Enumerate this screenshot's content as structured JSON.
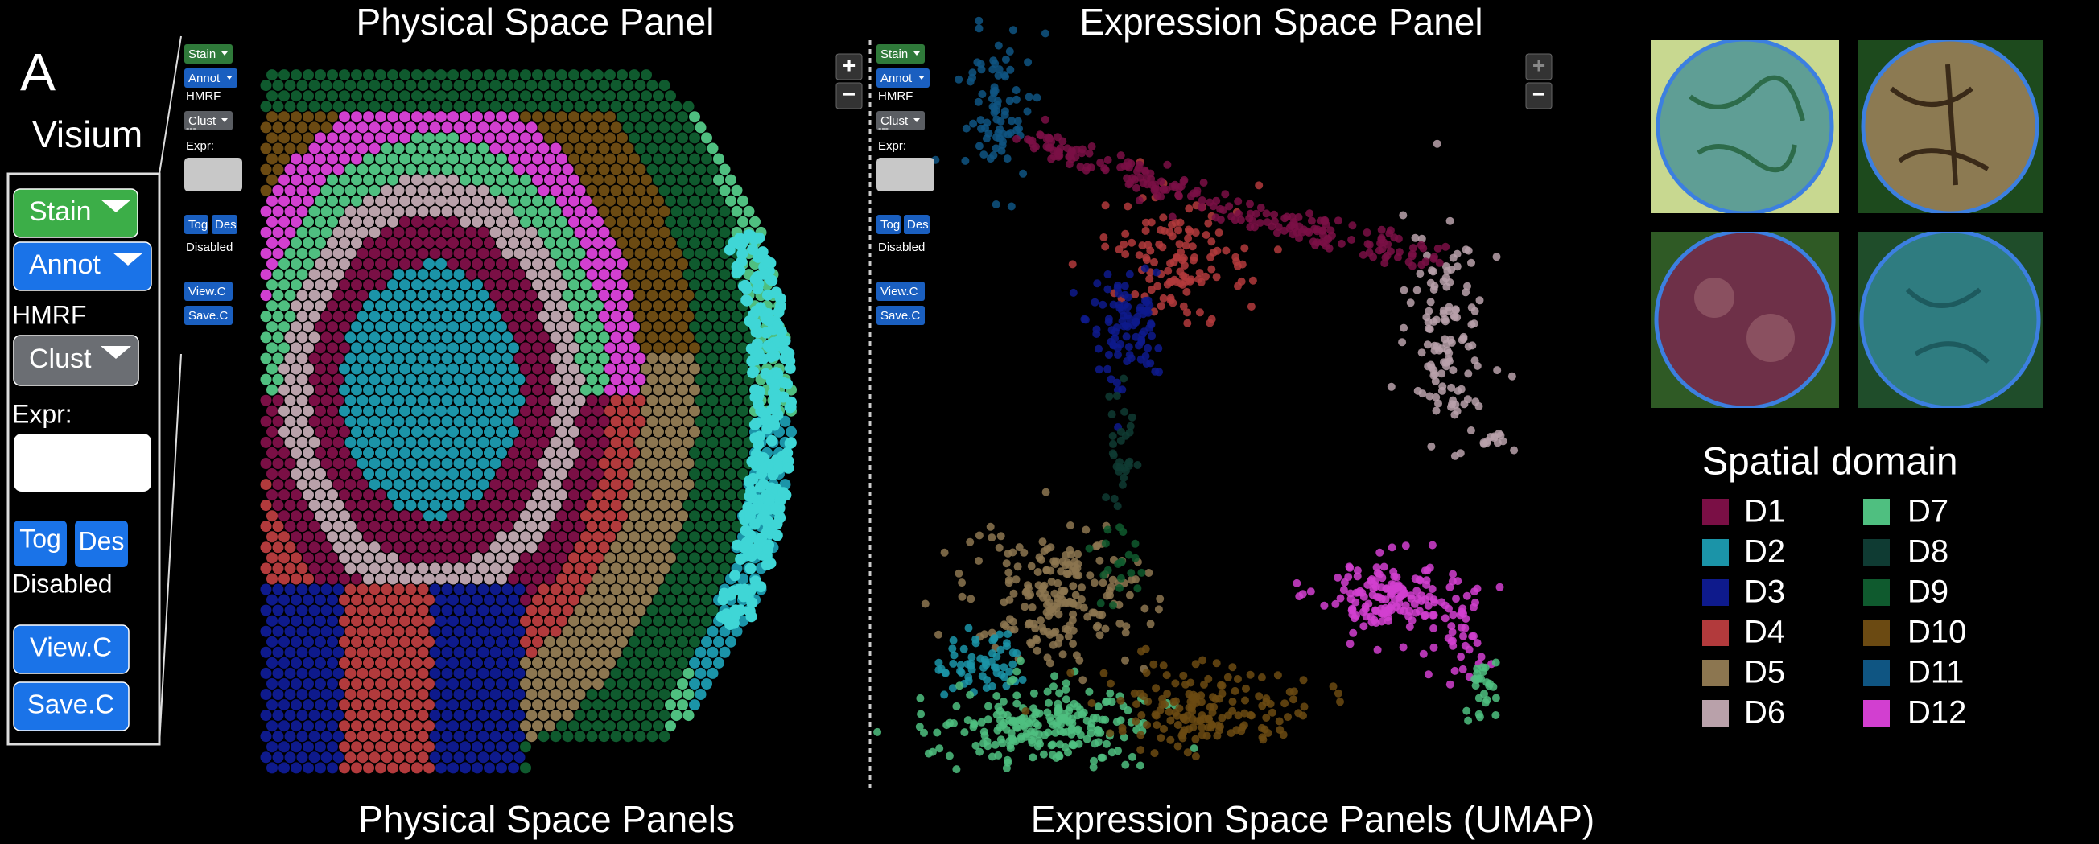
{
  "figure": {
    "panel_label": "A",
    "platform": "Visium"
  },
  "sidebar": {
    "stain": "Stain",
    "annot": "Annot",
    "hmrf": "HMRF",
    "clust": "Clust",
    "expr": "Expr:",
    "tog": "Tog",
    "des": "Des",
    "status": "Disabled",
    "view": "View.C",
    "save": "Save.C"
  },
  "physical_panel": {
    "title": "Physical Space Panel",
    "caption": "Physical Space Panels",
    "zoom_in": "+",
    "zoom_out": "−",
    "mini_sidebar": {
      "stain": "Stain",
      "annot": "Annot",
      "hmrf": "HMRF",
      "clust": "Clust",
      "divider": "---",
      "expr": "Expr:",
      "tog": "Tog",
      "des": "Des",
      "status": "Disabled",
      "view": "View.C",
      "save": "Save.C"
    }
  },
  "expression_panel": {
    "title": "Expression Space Panel",
    "caption": "Expression Space Panels (UMAP)",
    "zoom_in": "+",
    "zoom_out": "−",
    "mini_sidebar": {
      "stain": "Stain",
      "annot": "Annot",
      "hmrf": "HMRF",
      "clust": "Clust",
      "divider": "---",
      "expr": "Expr:",
      "tog": "Tog",
      "des": "Des",
      "status": "Disabled",
      "view": "View.C",
      "save": "Save.C"
    }
  },
  "legend": {
    "title": "Spatial domain",
    "items": [
      {
        "label": "D1",
        "color": "#7a0f45"
      },
      {
        "label": "D2",
        "color": "#1b94a8"
      },
      {
        "label": "D3",
        "color": "#0e1a8c"
      },
      {
        "label": "D4",
        "color": "#b23a3c"
      },
      {
        "label": "D5",
        "color": "#8c7650"
      },
      {
        "label": "D6",
        "color": "#b9a1aa"
      },
      {
        "label": "D7",
        "color": "#4fbf80"
      },
      {
        "label": "D8",
        "color": "#0f3b33"
      },
      {
        "label": "D9",
        "color": "#0f5a2e"
      },
      {
        "label": "D10",
        "color": "#6b4a12"
      },
      {
        "label": "D11",
        "color": "#0f5582"
      },
      {
        "label": "D12",
        "color": "#d23fd0"
      }
    ]
  }
}
